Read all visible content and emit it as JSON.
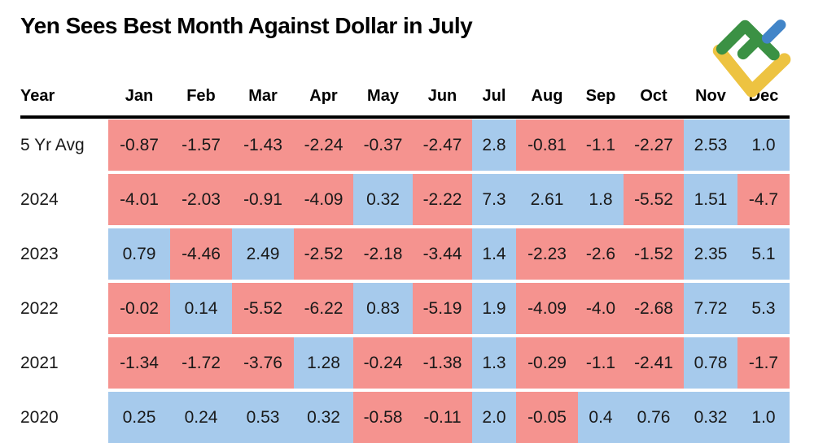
{
  "title": "Yen Sees Best Month Against Dollar in July",
  "chart_data": {
    "type": "heatmap",
    "title": "Yen Sees Best Month Against Dollar in July",
    "row_label_header": "Year",
    "columns": [
      "Jan",
      "Feb",
      "Mar",
      "Apr",
      "May",
      "Jun",
      "Jul",
      "Aug",
      "Sep",
      "Oct",
      "Nov",
      "Dec"
    ],
    "rows": [
      {
        "label": "5 Yr Avg",
        "values": [
          "-0.87",
          "-1.57",
          "-1.43",
          "-2.24",
          "-0.37",
          "-2.47",
          "2.8",
          "-0.81",
          "-1.1",
          "-2.27",
          "2.53",
          "1.0"
        ]
      },
      {
        "label": "2024",
        "values": [
          "-4.01",
          "-2.03",
          "-0.91",
          "-4.09",
          "0.32",
          "-2.22",
          "7.3",
          "2.61",
          "1.8",
          "-5.52",
          "1.51",
          "-4.7"
        ]
      },
      {
        "label": "2023",
        "values": [
          "0.79",
          "-4.46",
          "2.49",
          "-2.52",
          "-2.18",
          "-3.44",
          "1.4",
          "-2.23",
          "-2.6",
          "-1.52",
          "2.35",
          "5.1"
        ]
      },
      {
        "label": "2022",
        "values": [
          "-0.02",
          "0.14",
          "-5.52",
          "-6.22",
          "0.83",
          "-5.19",
          "1.9",
          "-4.09",
          "-4.0",
          "-2.68",
          "7.72",
          "5.3"
        ]
      },
      {
        "label": "2021",
        "values": [
          "-1.34",
          "-1.72",
          "-3.76",
          "1.28",
          "-0.24",
          "-1.38",
          "1.3",
          "-0.29",
          "-1.1",
          "-2.41",
          "0.78",
          "-1.7"
        ]
      },
      {
        "label": "2020",
        "values": [
          "0.25",
          "0.24",
          "0.53",
          "0.32",
          "-0.58",
          "-0.11",
          "2.0",
          "-0.05",
          "0.4",
          "0.76",
          "0.32",
          "1.0"
        ]
      }
    ],
    "color_rule": "negative value = red cell, positive value = blue cell",
    "colors": {
      "negative_cell": "#f5938f",
      "positive_cell": "#a6caec",
      "text": "#191919",
      "header_rule": "#000000"
    }
  },
  "logo": {
    "name": "litefinance-logo",
    "colors": {
      "green": "#3b9144",
      "blue": "#4285c8",
      "yellow": "#edc341"
    }
  }
}
